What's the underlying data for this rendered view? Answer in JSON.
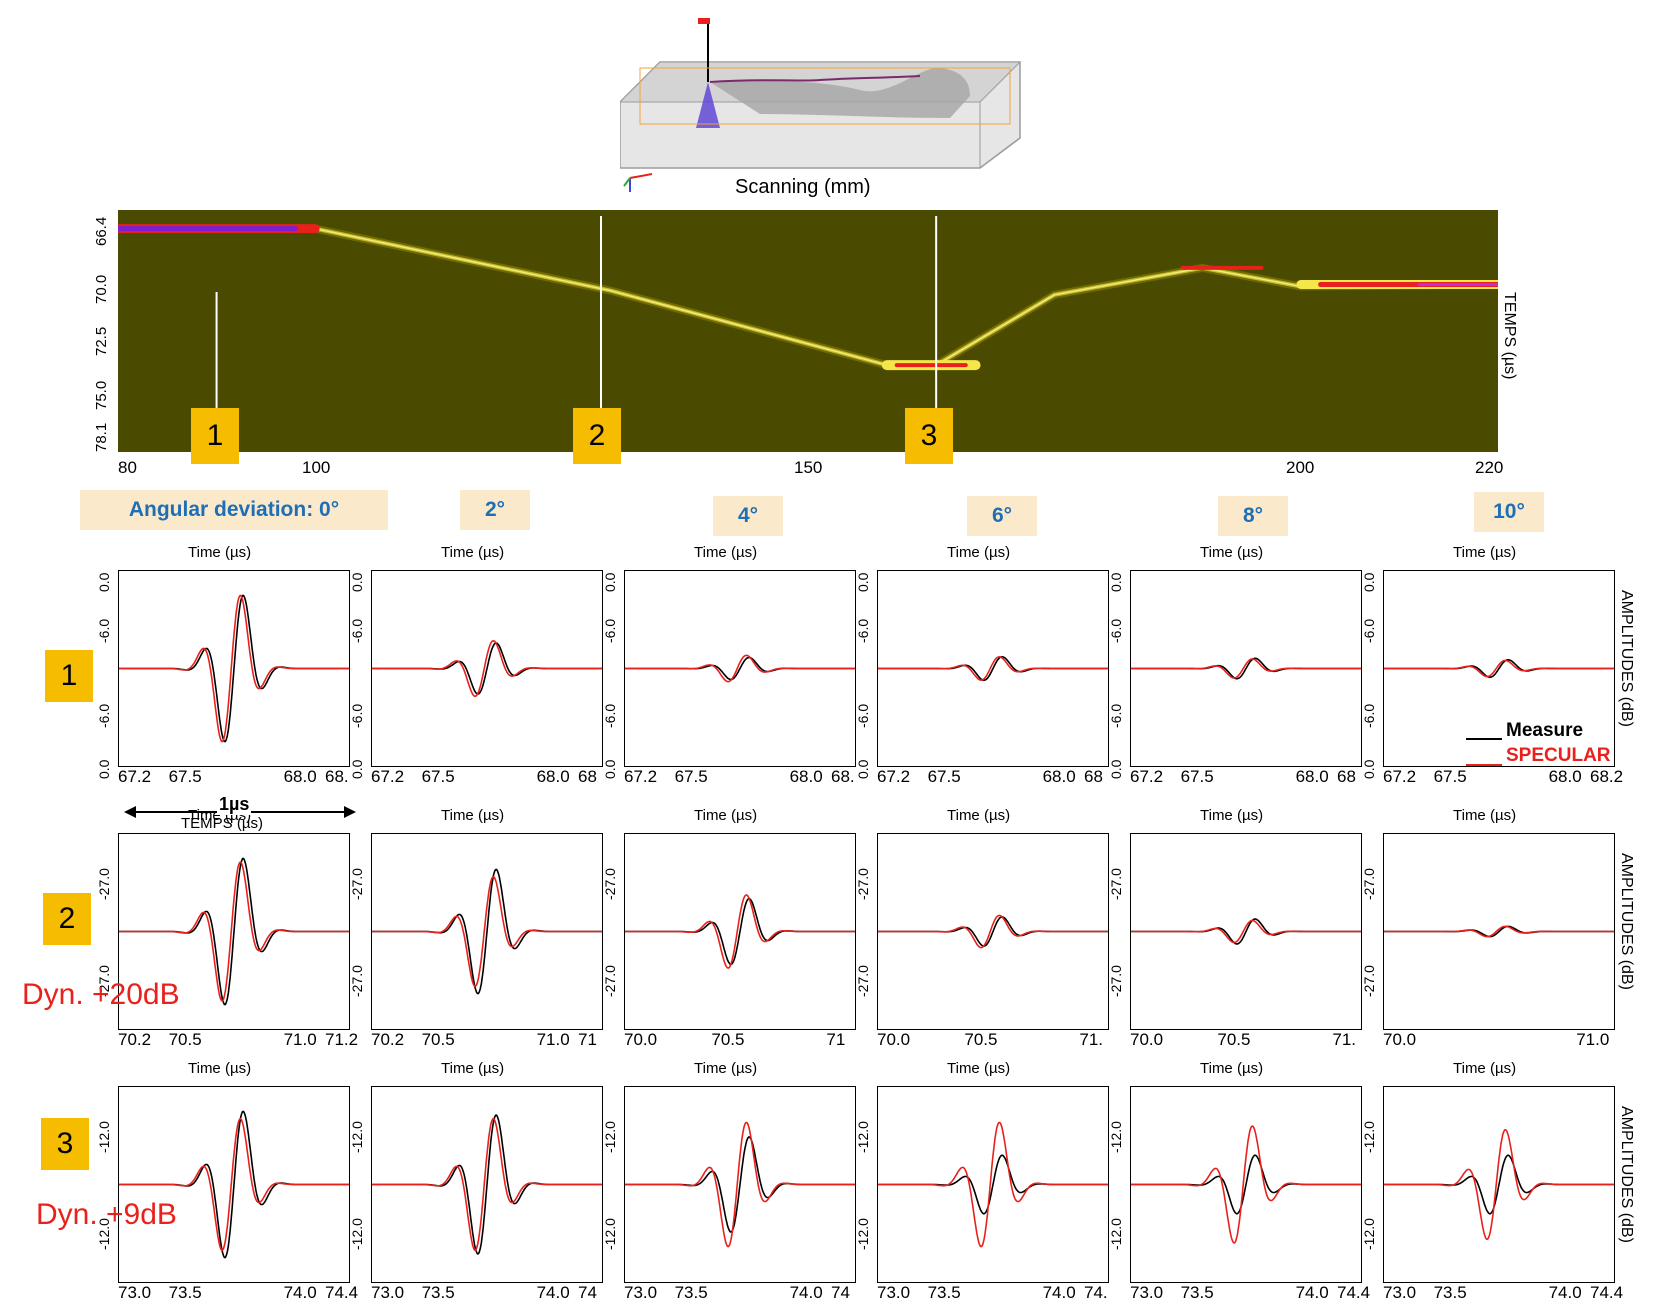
{
  "scan_axis_label": "Scanning (mm)",
  "bscan": {
    "x_ticks": [
      "80",
      "100",
      "150",
      "200",
      "220"
    ],
    "x_tick_values": [
      80,
      100,
      150,
      200,
      220
    ],
    "y_ticks": [
      "66.4",
      "70.0",
      "72.5",
      "75.0",
      "78.1"
    ],
    "y_label": "TEMPS (µs)",
    "markers": [
      "1",
      "2",
      "3"
    ],
    "marker_positions_mm": [
      90,
      129,
      163
    ]
  },
  "angle_headers": [
    "Angular deviation: 0°",
    "2°",
    "4°",
    "6°",
    "8°",
    "10°"
  ],
  "panel_title": "Time (µs)",
  "amplitude_label": "AMPLITUDES (dB)",
  "row_badges": [
    "1",
    "2",
    "3"
  ],
  "dyn_labels": [
    "Dyn. +20dB",
    "Dyn. +9dB"
  ],
  "scale_label": "1µs",
  "row1_bottom_label": "TEMPS (µs)",
  "legend": {
    "measure": "Measure",
    "specular": "SPECULAR"
  },
  "colors": {
    "measure": "#000000",
    "specular": "#e8211c",
    "badge": "#f6bd00",
    "header_text": "#1e6fb6",
    "header_bg": "#fbe9cc",
    "bscan_bg": "#4a4a00"
  },
  "chart_data": [
    {
      "type": "heatmap",
      "title": "B-scan",
      "xlabel": "Scanning (mm)",
      "ylabel": "TEMPS (µs)",
      "xlim": [
        80,
        220
      ],
      "ylim": [
        66.4,
        78.1
      ],
      "echo_trace": [
        {
          "x": 80,
          "y": 67.3
        },
        {
          "x": 100,
          "y": 67.3
        },
        {
          "x": 130,
          "y": 70.3
        },
        {
          "x": 158,
          "y": 73.9
        },
        {
          "x": 163,
          "y": 73.9
        },
        {
          "x": 175,
          "y": 70.5
        },
        {
          "x": 190,
          "y": 69.2
        },
        {
          "x": 200,
          "y": 70.1
        },
        {
          "x": 220,
          "y": 70.0
        }
      ]
    },
    {
      "type": "line",
      "row": 1,
      "y_ticks": [
        "0.0",
        "-6.0",
        "-6.0",
        "0.0"
      ],
      "panels": [
        {
          "angle": "0°",
          "x_ticks": [
            "67.2",
            "67.5",
            "68.0",
            "68."
          ],
          "measure_amp": 1.0,
          "specular_amp": 1.0
        },
        {
          "angle": "2°",
          "x_ticks": [
            "67.2",
            "67.5",
            "68.0",
            "68"
          ],
          "measure_amp": 0.35,
          "specular_amp": 0.38
        },
        {
          "angle": "4°",
          "x_ticks": [
            "67.2",
            "67.5",
            "68.0",
            "68."
          ],
          "measure_amp": 0.15,
          "specular_amp": 0.18
        },
        {
          "angle": "6°",
          "x_ticks": [
            "67.2",
            "67.5",
            "68.0",
            "68"
          ],
          "measure_amp": 0.16,
          "specular_amp": 0.16
        },
        {
          "angle": "8°",
          "x_ticks": [
            "67.2",
            "67.5",
            "68.0",
            "68"
          ],
          "measure_amp": 0.14,
          "specular_amp": 0.13
        },
        {
          "angle": "10°",
          "x_ticks": [
            "67.2",
            "67.5",
            "68.0",
            "68.2"
          ],
          "measure_amp": 0.12,
          "specular_amp": 0.11
        }
      ]
    },
    {
      "type": "line",
      "row": 2,
      "y_ticks": [
        "-27.0",
        "-27.0"
      ],
      "panels": [
        {
          "angle": "0°",
          "x_ticks": [
            "70.2",
            "70.5",
            "71.0",
            "71.2"
          ],
          "measure_amp": 1.0,
          "specular_amp": 0.95
        },
        {
          "angle": "2°",
          "x_ticks": [
            "70.2",
            "70.5",
            "71.0",
            "71"
          ],
          "measure_amp": 0.85,
          "specular_amp": 0.75
        },
        {
          "angle": "4°",
          "x_ticks": [
            "70.0",
            "70.5",
            "71"
          ],
          "measure_amp": 0.45,
          "specular_amp": 0.5
        },
        {
          "angle": "6°",
          "x_ticks": [
            "70.0",
            "70.5",
            "71."
          ],
          "measure_amp": 0.2,
          "specular_amp": 0.22
        },
        {
          "angle": "8°",
          "x_ticks": [
            "70.0",
            "70.5",
            "71."
          ],
          "measure_amp": 0.17,
          "specular_amp": 0.15
        },
        {
          "angle": "10°",
          "x_ticks": [
            "70.0",
            "71.0"
          ],
          "measure_amp": 0.07,
          "specular_amp": 0.07
        }
      ]
    },
    {
      "type": "line",
      "row": 3,
      "y_ticks": [
        "-12.0",
        "-12.0"
      ],
      "panels": [
        {
          "angle": "0°",
          "x_ticks": [
            "73.0",
            "73.5",
            "74.0",
            "74.4"
          ],
          "measure_amp": 1.0,
          "specular_amp": 0.9
        },
        {
          "angle": "2°",
          "x_ticks": [
            "73.0",
            "73.5",
            "74.0",
            "74"
          ],
          "measure_amp": 0.95,
          "specular_amp": 0.9
        },
        {
          "angle": "4°",
          "x_ticks": [
            "73.0",
            "73.5",
            "74.0",
            "74"
          ],
          "measure_amp": 0.65,
          "specular_amp": 0.85
        },
        {
          "angle": "6°",
          "x_ticks": [
            "73.0",
            "73.5",
            "74.0",
            "74."
          ],
          "measure_amp": 0.4,
          "specular_amp": 0.85
        },
        {
          "angle": "8°",
          "x_ticks": [
            "73.0",
            "73.5",
            "74.0",
            "74.4"
          ],
          "measure_amp": 0.4,
          "specular_amp": 0.8
        },
        {
          "angle": "10°",
          "x_ticks": [
            "73.0",
            "73.5",
            "74.0",
            "74.4"
          ],
          "measure_amp": 0.4,
          "specular_amp": 0.75
        }
      ]
    }
  ]
}
